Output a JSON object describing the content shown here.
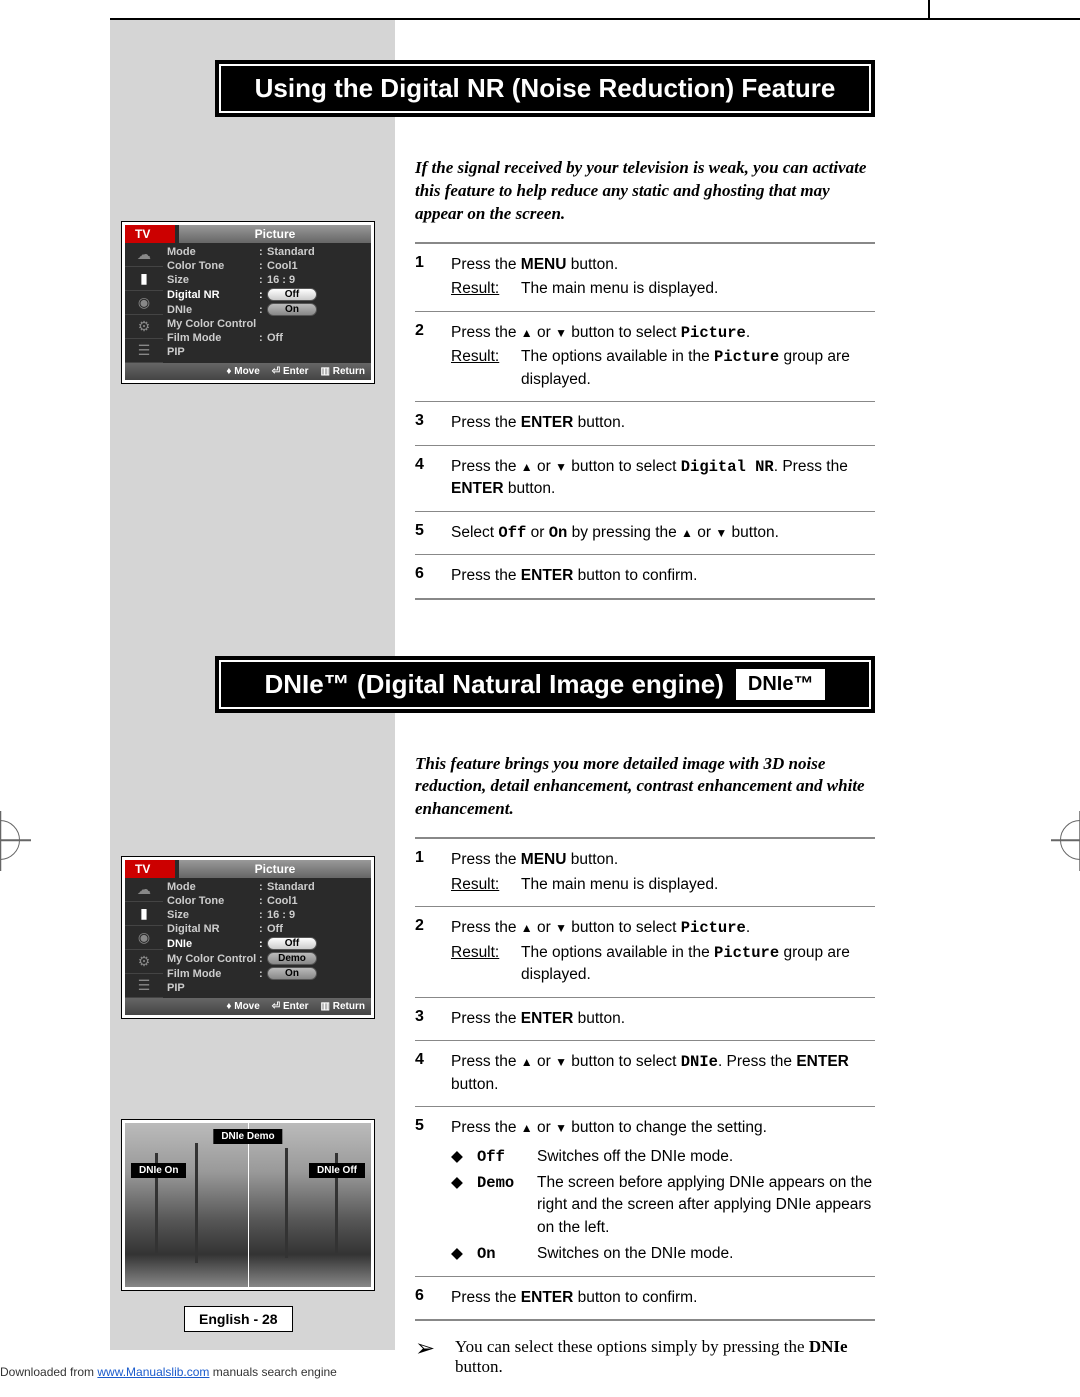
{
  "page": {
    "top_title_1": "Using the Digital NR (Noise Reduction) Feature",
    "top_title_2_pre": "DNIe™ (Digital Natural Image engine)",
    "top_title_2_badge": "DNIe™",
    "intro_1": "If the signal received by your television is weak, you can activate this feature to help reduce any static and ghosting that may appear on the screen.",
    "intro_2": "This feature brings you more detailed image with 3D noise reduction, detail enhancement, contrast enhancement and white enhancement.",
    "note": "You can select these options simply by pressing the ",
    "note_bold": "DNIe",
    "note_end": " button.",
    "pagenum": "English - 28",
    "footer_pre": "Downloaded from ",
    "footer_link": "www.Manualslib.com",
    "footer_post": " manuals search engine"
  },
  "steps1": [
    {
      "n": "1",
      "pre": "Press the ",
      "b": "MENU",
      "post": " button.",
      "result": "The main menu is displayed."
    },
    {
      "n": "2",
      "pre": "Press the ",
      "mid": " or ",
      "post": " button to select ",
      "mono": "Picture",
      "tail": ".",
      "result_pre": "The options available in the ",
      "result_mono": "Picture",
      "result_post": " group are displayed."
    },
    {
      "n": "3",
      "pre": "Press the ",
      "b": "ENTER",
      "post": " button."
    },
    {
      "n": "4",
      "pre": "Press the ",
      "mid": " or ",
      "post": " button to select ",
      "mono": "Digital NR",
      "tail": ". Press the ",
      "b2": "ENTER",
      "tail2": " button."
    },
    {
      "n": "5",
      "pre": "Select ",
      "mono": "Off",
      "mid2": " or ",
      "mono2": "On",
      "post2": "  by pressing the ",
      "mid": " or ",
      "tail": " button."
    },
    {
      "n": "6",
      "pre": "Press the ",
      "b": "ENTER",
      "post": " button to confirm."
    }
  ],
  "steps2": [
    {
      "n": "1",
      "pre": "Press the ",
      "b": "MENU",
      "post": " button.",
      "result": "The main menu is displayed."
    },
    {
      "n": "2",
      "pre": "Press the ",
      "mid": " or ",
      "post": " button to select ",
      "mono": "Picture",
      "tail": ".",
      "result_pre": "The options available in the ",
      "result_mono": "Picture",
      "result_post": " group are displayed."
    },
    {
      "n": "3",
      "pre": "Press the ",
      "b": "ENTER",
      "post": " button."
    },
    {
      "n": "4",
      "pre": "Press the ",
      "mid": " or ",
      "post": " button to select ",
      "mono": "DNIe",
      "tail": ". Press the ",
      "b2": "ENTER",
      "tail2": " button."
    },
    {
      "n": "5",
      "pre": "Press the ",
      "mid": " or ",
      "post": " button to change the setting.",
      "bullets": [
        {
          "k": "Off",
          "v": "Switches off the DNIe mode."
        },
        {
          "k": "Demo",
          "v": "The screen before applying DNIe appears on the right and the screen after applying DNIe appears on the left."
        },
        {
          "k": "On",
          "v": "Switches on the DNIe mode."
        }
      ]
    },
    {
      "n": "6",
      "pre": "Press the ",
      "b": "ENTER",
      "post": " button to confirm."
    }
  ],
  "osd": {
    "tv": "TV",
    "title": "Picture",
    "rows1": [
      {
        "l": "Mode",
        "v": "Standard"
      },
      {
        "l": "Color Tone",
        "v": "Cool1"
      },
      {
        "l": "Size",
        "v": "16 : 9"
      },
      {
        "l": "Digital NR",
        "pill": "Off",
        "hl": true,
        "sel": true
      },
      {
        "l": "DNIe",
        "pill": "On"
      },
      {
        "l": "My Color Control"
      },
      {
        "l": "Film Mode",
        "v": "Off"
      },
      {
        "l": "PIP"
      }
    ],
    "rows2": [
      {
        "l": "Mode",
        "v": "Standard"
      },
      {
        "l": "Color Tone",
        "v": "Cool1"
      },
      {
        "l": "Size",
        "v": "16 : 9"
      },
      {
        "l": "Digital NR",
        "v": "Off"
      },
      {
        "l": "DNIe",
        "pill": "Off",
        "hl": true,
        "sel": true
      },
      {
        "l": "My Color Control",
        "pill": "Demo"
      },
      {
        "l": "Film Mode",
        "pill": "On"
      },
      {
        "l": "PIP"
      }
    ],
    "foot": {
      "move": "Move",
      "enter": "Enter",
      "return": "Return"
    }
  },
  "demo": {
    "title": "DNIe Demo",
    "on": "DNIe On",
    "off": "DNIe Off"
  }
}
